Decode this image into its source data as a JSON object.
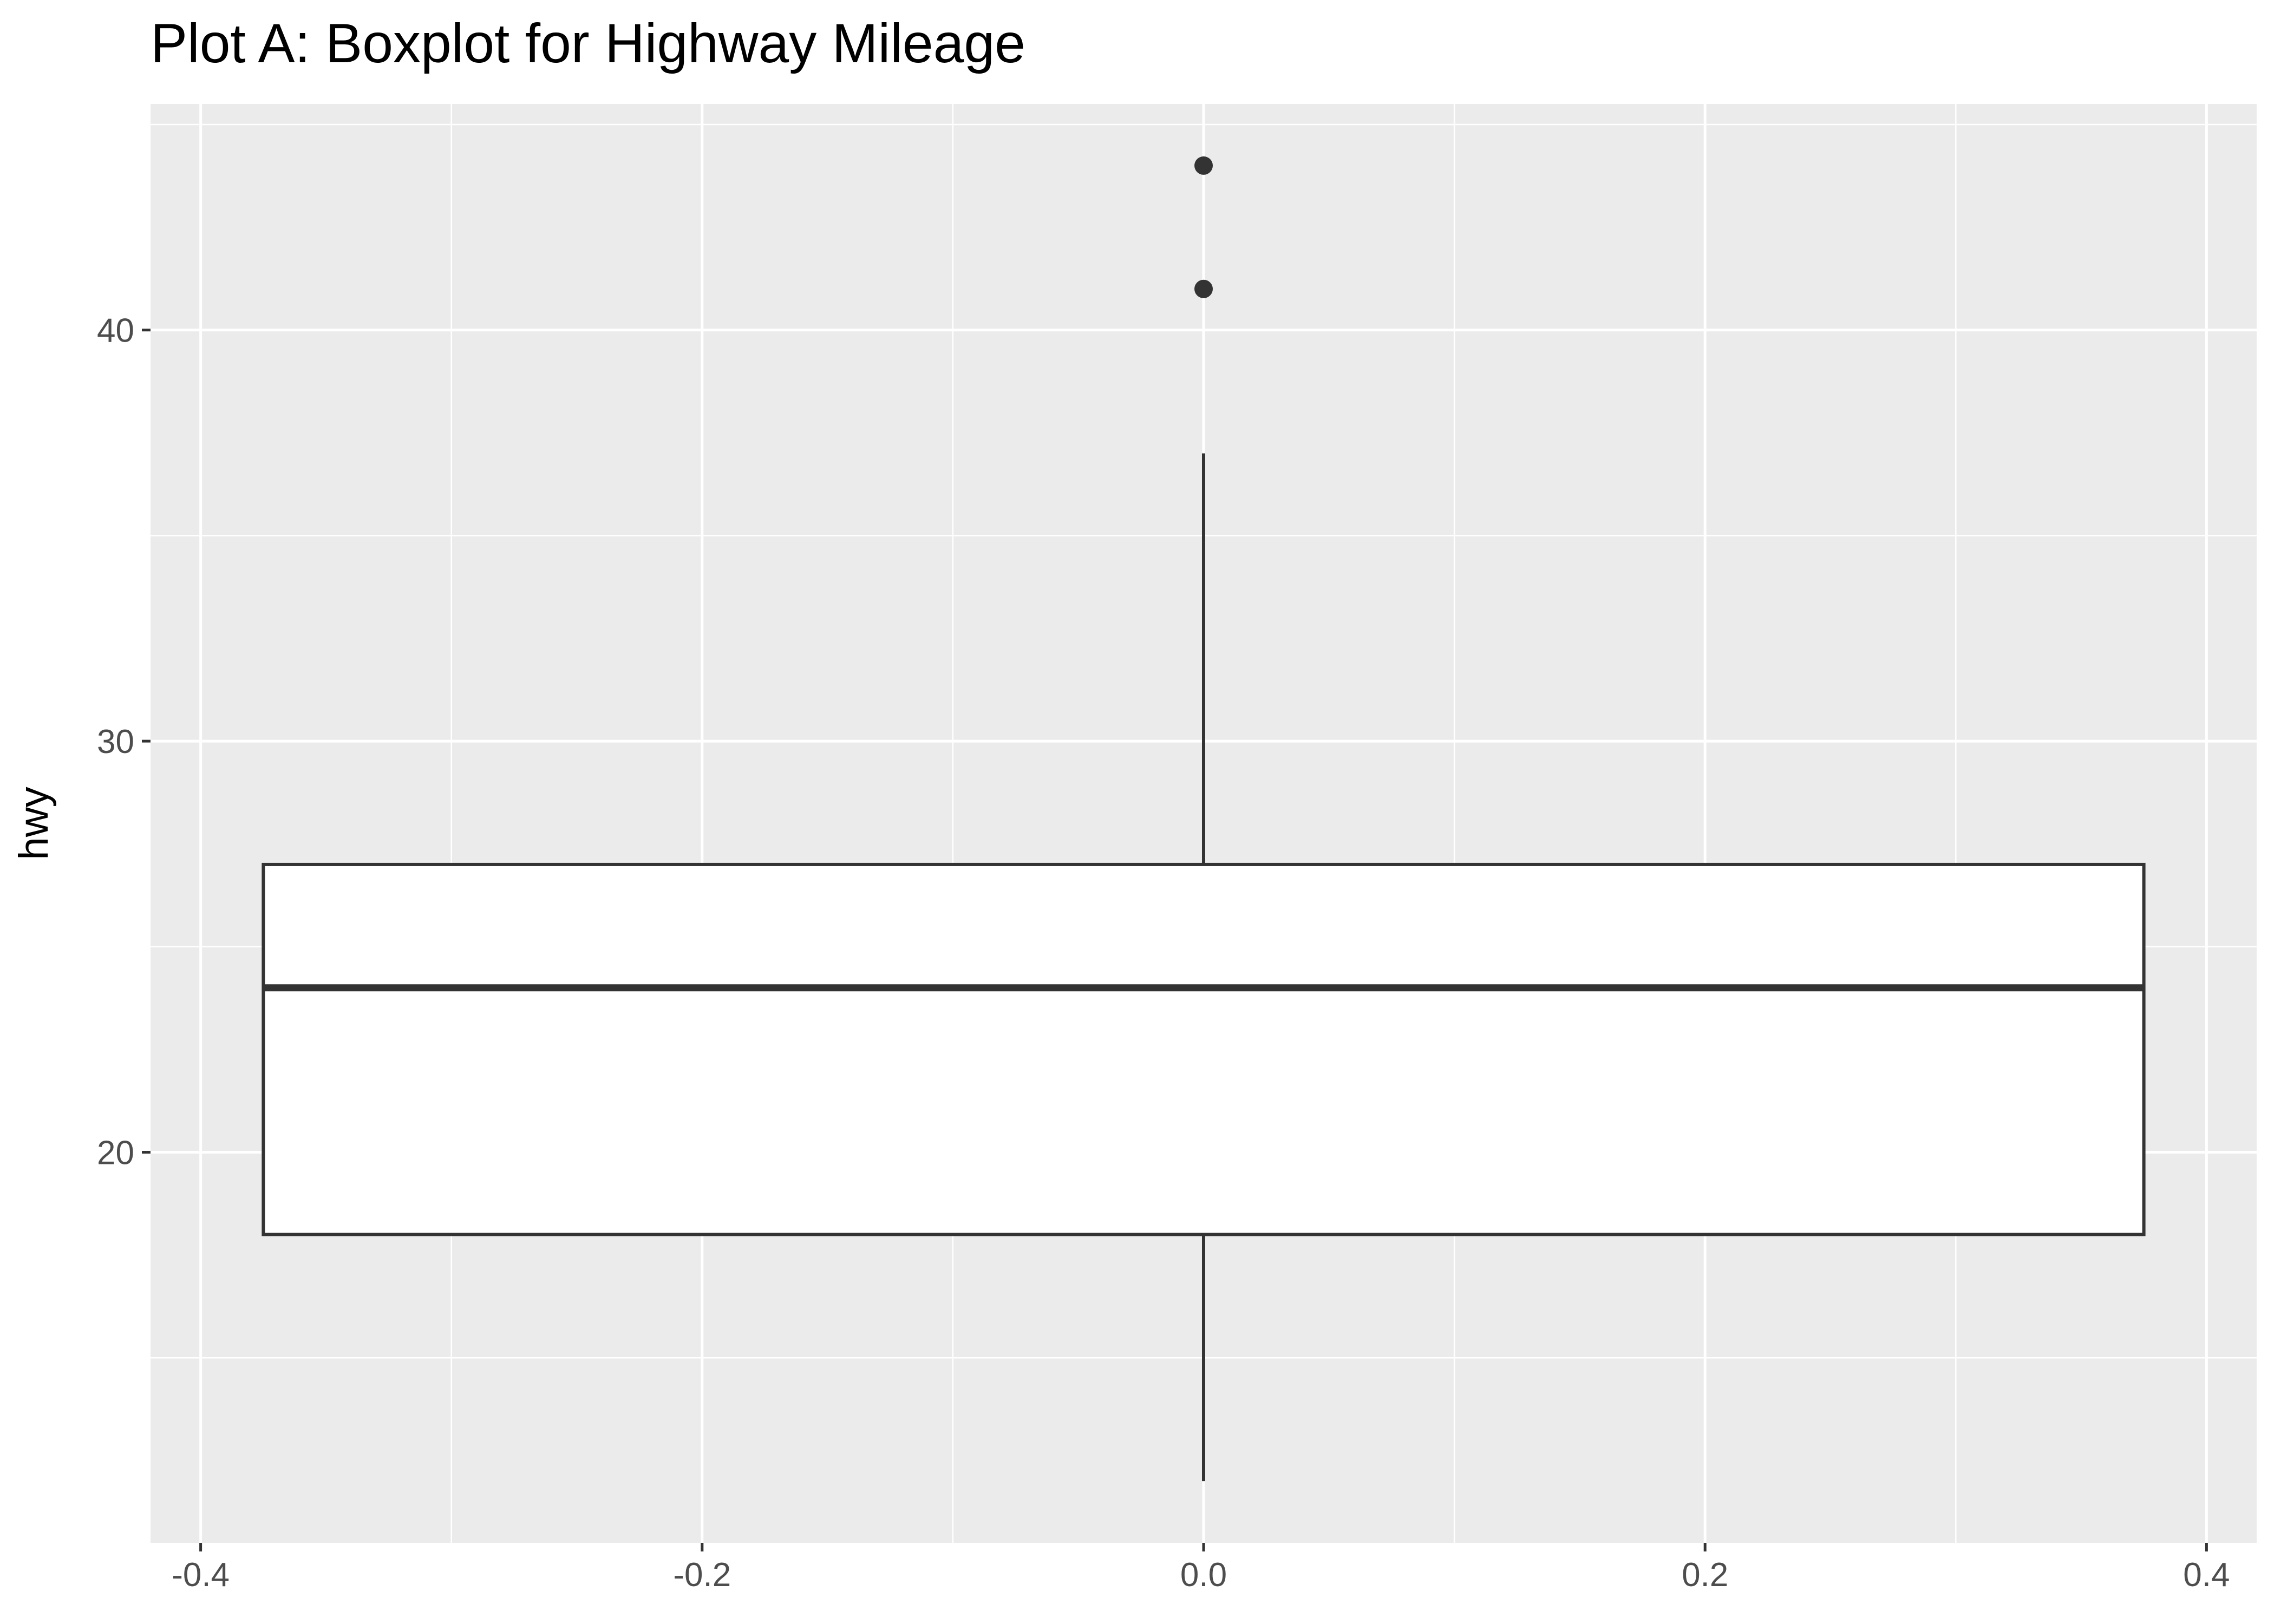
{
  "title": "Plot A: Boxplot for Highway Mileage",
  "chart_data": {
    "type": "boxplot",
    "title": "Plot A: Boxplot for Highway Mileage",
    "xlabel": "",
    "ylabel": "hwy",
    "xlim": [
      -0.42,
      0.42
    ],
    "ylim": [
      10.5,
      45.5
    ],
    "x_ticks": [
      -0.4,
      -0.2,
      0.0,
      0.2,
      0.4
    ],
    "x_tick_labels": [
      "-0.4",
      "-0.2",
      "0.0",
      "0.2",
      "0.4"
    ],
    "y_ticks": [
      20,
      30,
      40
    ],
    "y_tick_labels": [
      "20",
      "30",
      "40"
    ],
    "grid": true,
    "background": "#ebebeb",
    "box": {
      "x_center": 0.0,
      "x_left": -0.375,
      "x_right": 0.375,
      "q1": 18,
      "median": 24,
      "q3": 27,
      "whisker_low": 12,
      "whisker_high": 37,
      "outliers": [
        41,
        44
      ],
      "fill": "#ffffff",
      "stroke": "#333333"
    }
  }
}
